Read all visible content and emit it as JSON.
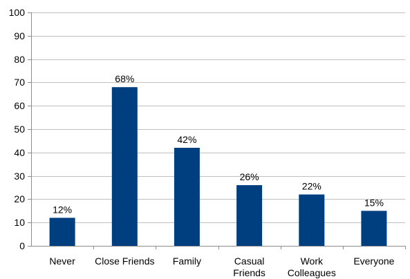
{
  "chart_data": {
    "type": "bar",
    "categories": [
      [
        "Never"
      ],
      [
        "Close Friends"
      ],
      [
        "Family"
      ],
      [
        "Casual",
        "Friends"
      ],
      [
        "Work",
        "Colleagues"
      ],
      [
        "Everyone"
      ]
    ],
    "values": [
      12,
      68,
      42,
      26,
      22,
      15
    ],
    "data_labels": [
      "12%",
      "68%",
      "42%",
      "26%",
      "22%",
      "15%"
    ],
    "ylim": [
      0,
      100
    ],
    "yticks": [
      0,
      10,
      20,
      30,
      40,
      50,
      60,
      70,
      80,
      90,
      100
    ],
    "grid": true,
    "bar_color": "#003f7f",
    "title": "",
    "xlabel": "",
    "ylabel": ""
  }
}
